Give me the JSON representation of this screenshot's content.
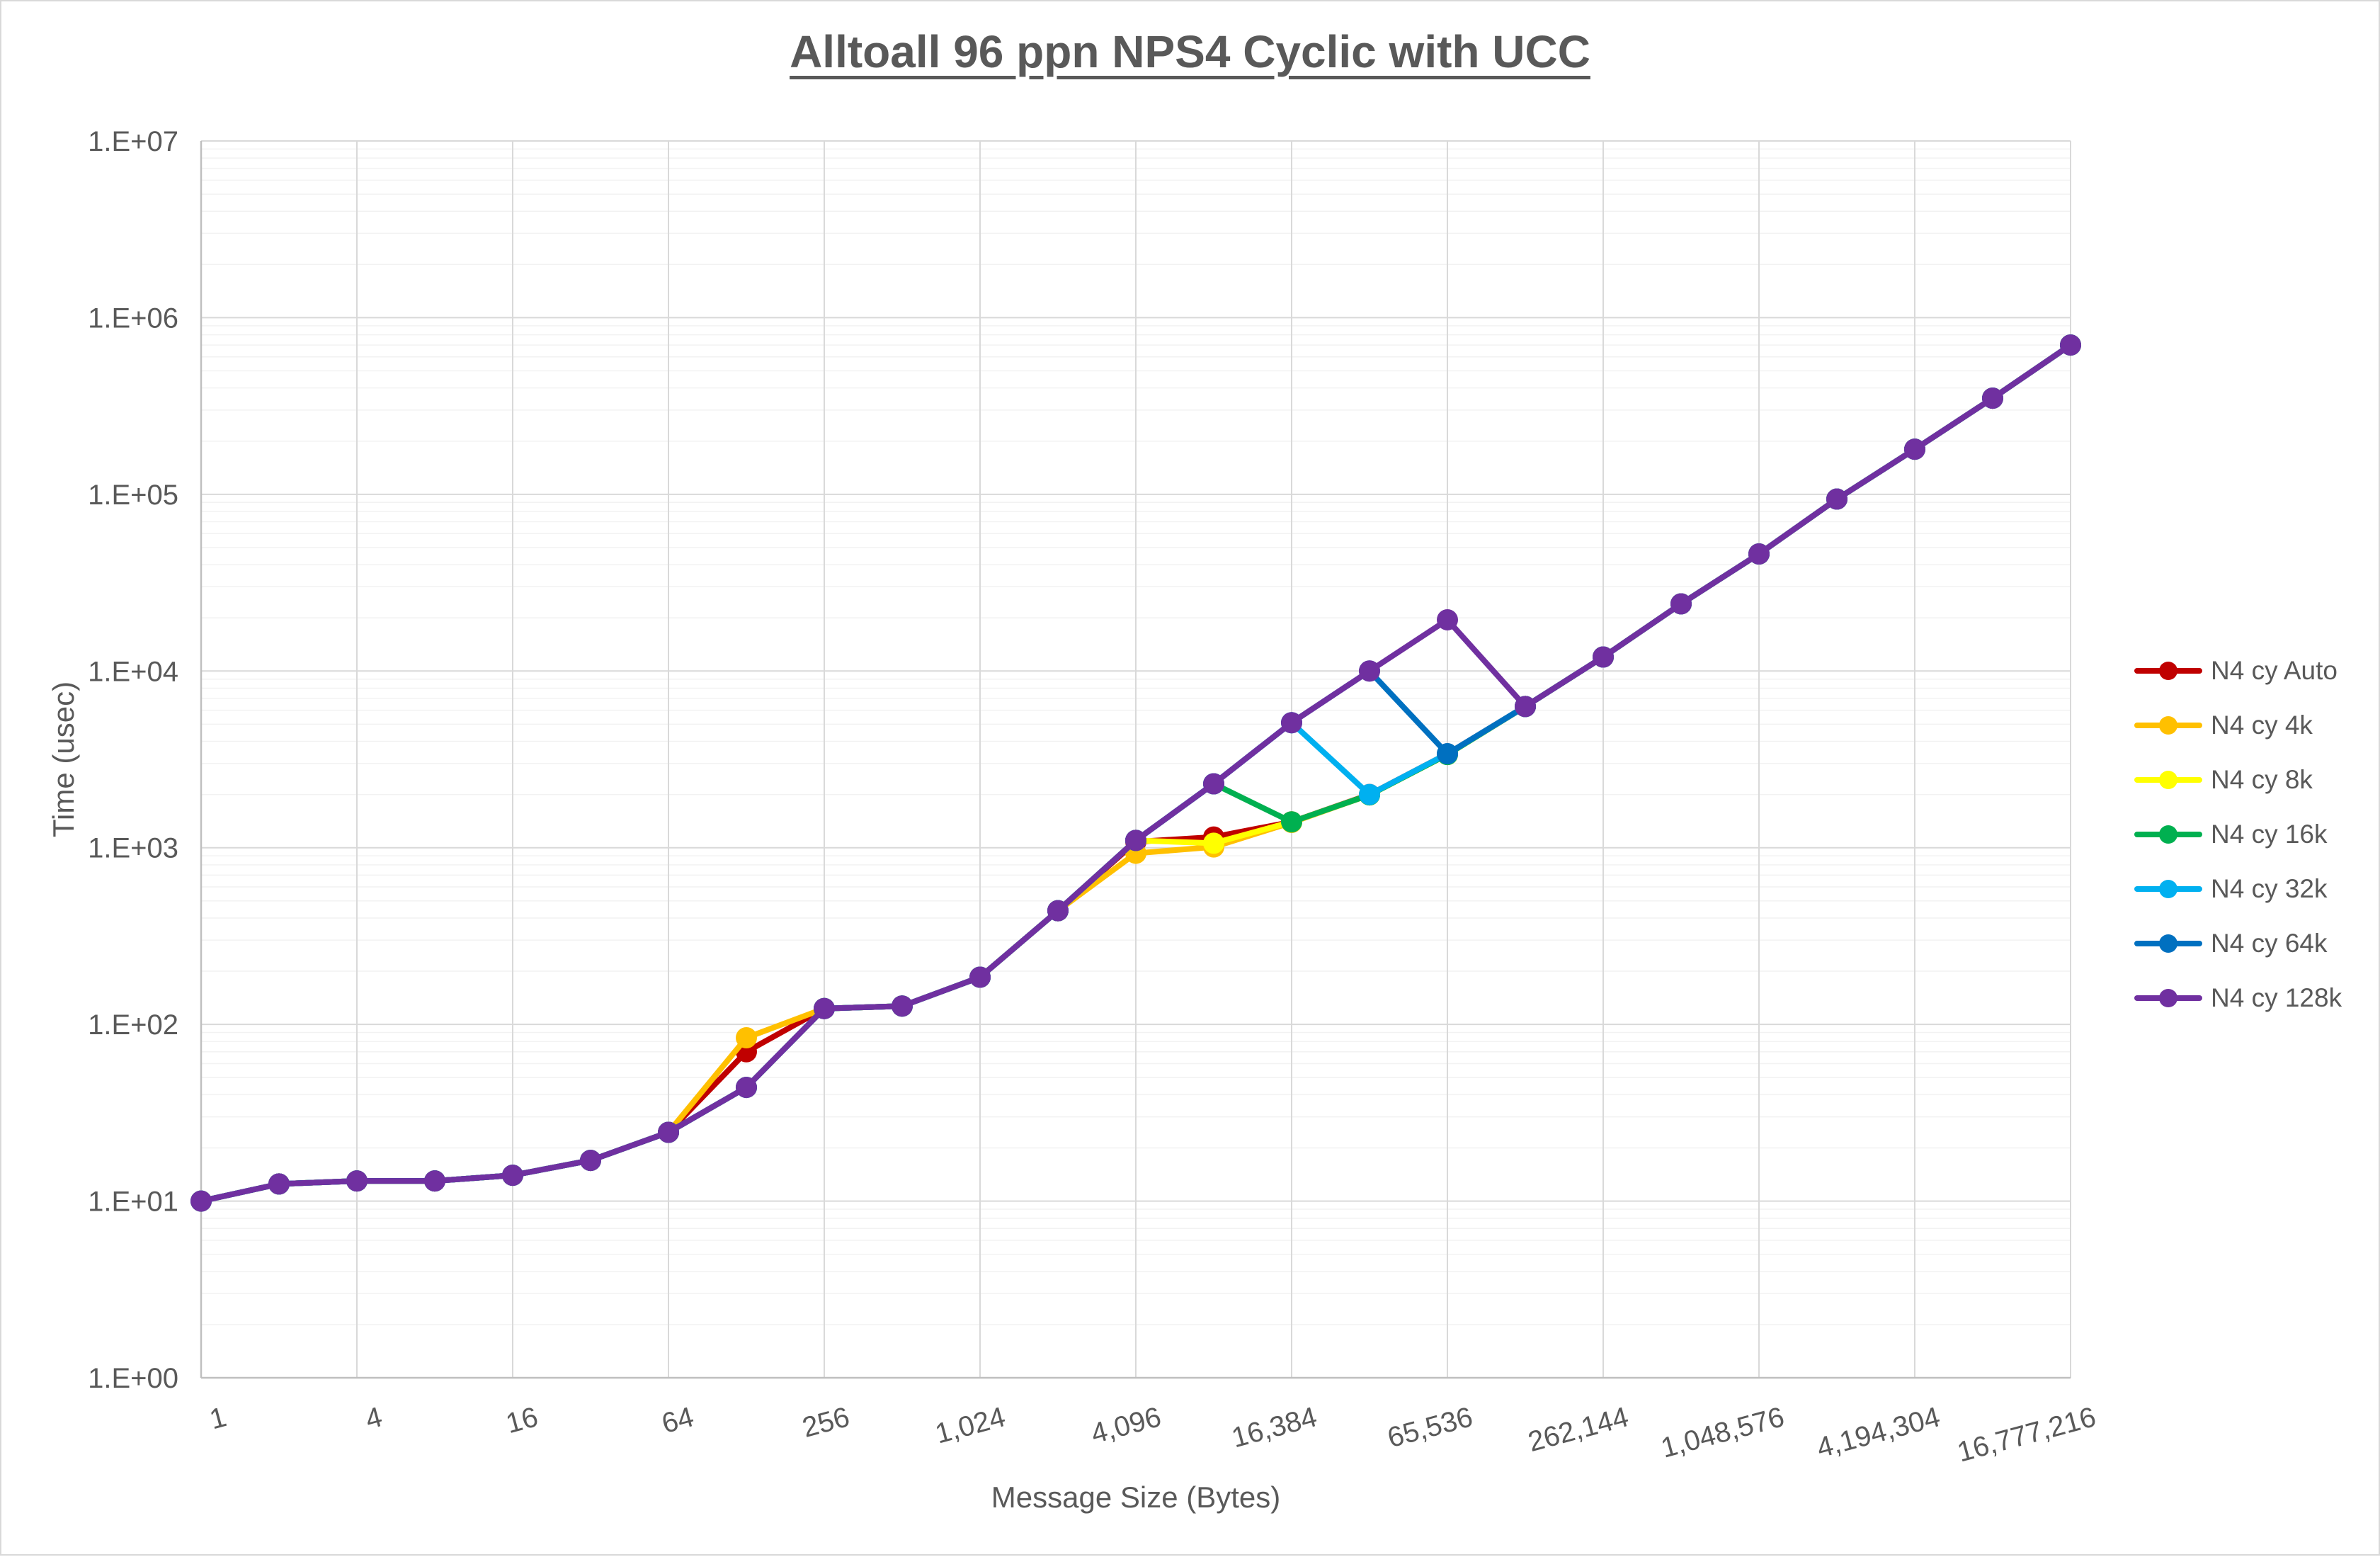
{
  "chart_data": {
    "type": "line",
    "title": "Alltoall 96 ppn NPS4 Cyclic with UCC",
    "xlabel": "Message Size (Bytes)",
    "ylabel": "Time (usec)",
    "x_scale": "log2",
    "y_scale": "log10",
    "ylim": [
      1,
      10000000
    ],
    "grid": true,
    "legend_position": "right",
    "x": [
      1,
      2,
      4,
      8,
      16,
      32,
      64,
      128,
      256,
      512,
      1024,
      2048,
      4096,
      8192,
      16384,
      32768,
      65536,
      131072,
      262144,
      524288,
      1048576,
      2097152,
      4194304,
      8388608,
      16777216
    ],
    "x_tick_labels": [
      "1",
      "4",
      "16",
      "64",
      "256",
      "1,024",
      "4,096",
      "16,384",
      "65,536",
      "262,144",
      "1,048,576",
      "4,194,304",
      "16,777,216"
    ],
    "y_tick_labels": [
      "1.E+00",
      "1.E+01",
      "1.E+02",
      "1.E+03",
      "1.E+04",
      "1.E+05",
      "1.E+06",
      "1.E+07"
    ],
    "series": [
      {
        "name": "N4 cy Auto",
        "color": "#C00000",
        "values": [
          10,
          12.5,
          13,
          13,
          14,
          17,
          24.5,
          70,
          123,
          127,
          185,
          440,
          1080,
          1150,
          1400,
          2000,
          3400,
          6300,
          12000,
          24000,
          46000,
          94000,
          180000,
          350000,
          700000
        ]
      },
      {
        "name": "N4 cy 4k",
        "color": "#FFC000",
        "values": [
          10,
          12.5,
          13,
          13,
          14,
          17,
          24.5,
          84,
          123,
          127,
          185,
          440,
          930,
          1010,
          1390,
          1990,
          3370,
          6300,
          12000,
          24000,
          46000,
          94000,
          180000,
          350000,
          700000
        ]
      },
      {
        "name": "N4 cy 8k",
        "color": "#FFFF00",
        "values": [
          10,
          12.5,
          13,
          13,
          14,
          17,
          24.5,
          44,
          123,
          127,
          185,
          440,
          1100,
          1060,
          1400,
          1990,
          3370,
          6300,
          12000,
          24000,
          46000,
          94000,
          180000,
          350000,
          700000
        ]
      },
      {
        "name": "N4 cy 16k",
        "color": "#00B050",
        "values": [
          10,
          12.5,
          13,
          13,
          14,
          17,
          24.5,
          44,
          123,
          127,
          185,
          440,
          1100,
          2300,
          1400,
          1990,
          3370,
          6300,
          12000,
          24000,
          46000,
          94000,
          180000,
          350000,
          700000
        ]
      },
      {
        "name": "N4 cy 32k",
        "color": "#00B0F0",
        "values": [
          10,
          12.5,
          13,
          13,
          14,
          17,
          24.5,
          44,
          123,
          127,
          185,
          440,
          1100,
          2300,
          5100,
          2000,
          3400,
          6300,
          12000,
          24000,
          46000,
          94000,
          180000,
          350000,
          700000
        ]
      },
      {
        "name": "N4 cy 64k",
        "color": "#0070C0",
        "values": [
          10,
          12.5,
          13,
          13,
          14,
          17,
          24.5,
          44,
          123,
          127,
          185,
          440,
          1100,
          2300,
          5100,
          10000,
          3400,
          6300,
          12000,
          24000,
          46000,
          94000,
          180000,
          350000,
          700000
        ]
      },
      {
        "name": "N4 cy 128k",
        "color": "#7030A0",
        "values": [
          10,
          12.5,
          13,
          13,
          14,
          17,
          24.5,
          44,
          123,
          127,
          185,
          440,
          1100,
          2300,
          5100,
          10000,
          19500,
          6300,
          12000,
          24000,
          46000,
          94000,
          180000,
          350000,
          700000
        ]
      }
    ],
    "colors": {
      "text": "#595959",
      "major_grid": "#D9D9D9",
      "minor_grid": "#F2F2F2",
      "axis_line": "#BFBFBF"
    }
  }
}
